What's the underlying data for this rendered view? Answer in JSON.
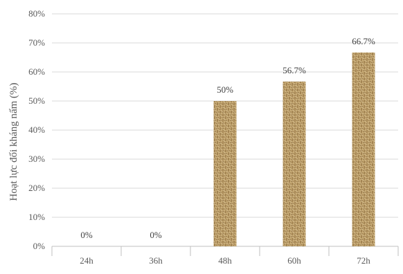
{
  "chart_data": {
    "type": "bar",
    "title": "",
    "xlabel": "",
    "ylabel": "Hoạt lực đối kháng nấm (%)",
    "categories": [
      "24h",
      "36h",
      "48h",
      "60h",
      "72h"
    ],
    "values": [
      0,
      0,
      50,
      56.7,
      66.7
    ],
    "data_labels": [
      "0%",
      "0%",
      "50%",
      "56.7%",
      "66.7%"
    ],
    "ylim": [
      0,
      80
    ],
    "yticks": [
      0,
      10,
      20,
      30,
      40,
      50,
      60,
      70,
      80
    ],
    "ytick_labels": [
      "0%",
      "10%",
      "20%",
      "30%",
      "40%",
      "50%",
      "60%",
      "70%",
      "80%"
    ],
    "grid": true,
    "legend": "none",
    "bar_fill": "woven texture",
    "colors": {
      "bar_base": "#c9ad78",
      "bar_weave_dark": "#8a6a3a",
      "bar_weave_light": "#e6d2a8",
      "gridline": "#d9d9d9",
      "axis": "#bfbfbf",
      "text": "#595959"
    }
  }
}
